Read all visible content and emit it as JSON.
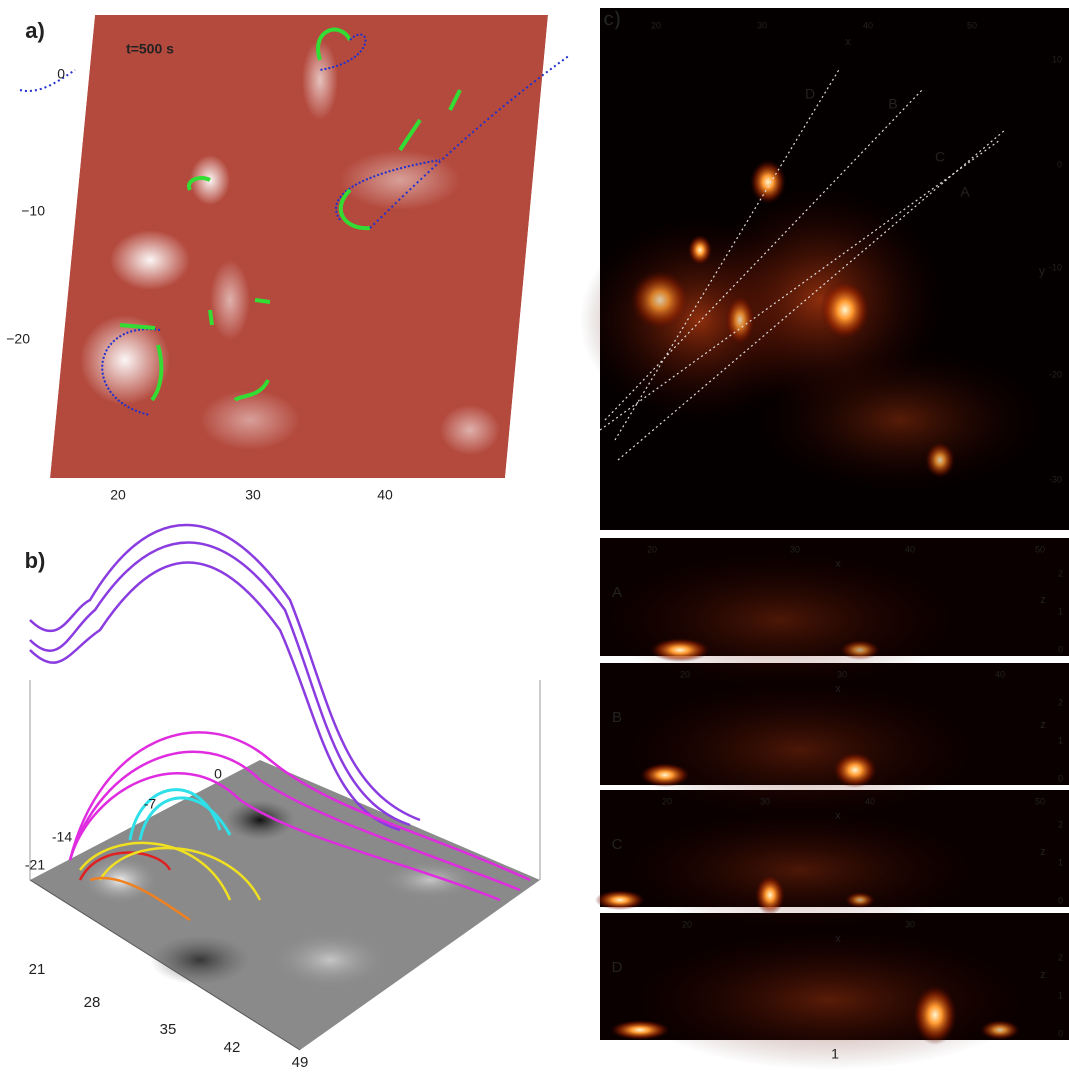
{
  "panel_a": {
    "label": "a)",
    "time": "t=500 s",
    "xticks": [
      "20",
      "30",
      "40"
    ],
    "yticks": [
      "0",
      "−10",
      "−20"
    ]
  },
  "panel_b": {
    "label": "b)",
    "front_ticks": [
      "21",
      "28",
      "35",
      "42",
      "49"
    ],
    "side_ticks": [
      "-21",
      "-14",
      "-7",
      "0"
    ]
  },
  "panel_c": {
    "label": "c)",
    "top": {
      "x_label": "x",
      "y_label": "y",
      "xticks": [
        "20",
        "30",
        "40",
        "50"
      ],
      "yticks": [
        "10",
        "0",
        "-10",
        "-20",
        "-30"
      ],
      "cut_labels": [
        "D",
        "B",
        "C",
        "A"
      ]
    },
    "cuts": [
      {
        "label": "A",
        "x_label": "x",
        "z_label": "z",
        "xticks": [
          "20",
          "30",
          "40",
          "50"
        ],
        "zticks": [
          "0",
          "1",
          "2"
        ]
      },
      {
        "label": "B",
        "x_label": "x",
        "z_label": "z",
        "xticks": [
          "20",
          "30",
          "40"
        ],
        "zticks": [
          "0",
          "1",
          "2"
        ]
      },
      {
        "label": "C",
        "x_label": "x",
        "z_label": "z",
        "xticks": [
          "20",
          "30",
          "40",
          "50"
        ],
        "zticks": [
          "0",
          "1",
          "2"
        ]
      },
      {
        "label": "D",
        "x_label": "x",
        "z_label": "z",
        "xticks": [
          "20",
          "30"
        ],
        "zticks": [
          "0",
          "1",
          "2"
        ]
      }
    ]
  },
  "page_number": "1"
}
